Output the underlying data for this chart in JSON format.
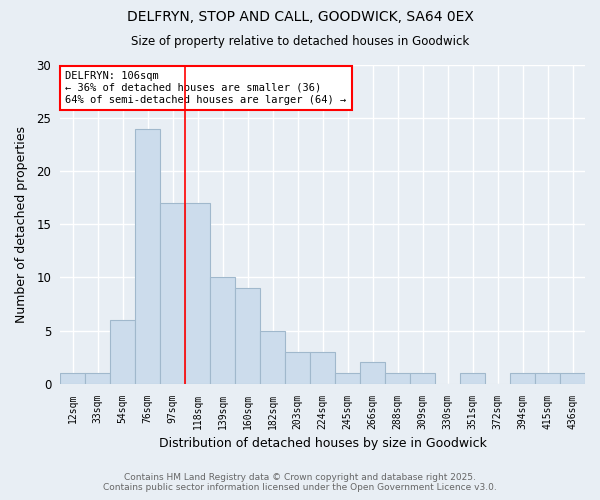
{
  "title": "DELFRYN, STOP AND CALL, GOODWICK, SA64 0EX",
  "subtitle": "Size of property relative to detached houses in Goodwick",
  "xlabel": "Distribution of detached houses by size in Goodwick",
  "ylabel": "Number of detached properties",
  "categories": [
    "12sqm",
    "33sqm",
    "54sqm",
    "76sqm",
    "97sqm",
    "118sqm",
    "139sqm",
    "160sqm",
    "182sqm",
    "203sqm",
    "224sqm",
    "245sqm",
    "266sqm",
    "288sqm",
    "309sqm",
    "330sqm",
    "351sqm",
    "372sqm",
    "394sqm",
    "415sqm",
    "436sqm"
  ],
  "values": [
    1,
    1,
    6,
    24,
    17,
    17,
    10,
    9,
    5,
    3,
    3,
    1,
    2,
    1,
    1,
    0,
    1,
    0,
    1,
    1,
    1
  ],
  "bar_color": "#ccdcec",
  "bar_edge_color": "#a0b8cc",
  "red_line_x": 4.5,
  "annotation_title": "DELFRYN: 106sqm",
  "annotation_line1": "← 36% of detached houses are smaller (36)",
  "annotation_line2": "64% of semi-detached houses are larger (64) →",
  "ylim": [
    0,
    30
  ],
  "yticks": [
    0,
    5,
    10,
    15,
    20,
    25,
    30
  ],
  "plot_bg_color": "#e8eef4",
  "fig_bg_color": "#e8eef4",
  "grid_color": "#ffffff",
  "footer_line1": "Contains HM Land Registry data © Crown copyright and database right 2025.",
  "footer_line2": "Contains public sector information licensed under the Open Government Licence v3.0."
}
